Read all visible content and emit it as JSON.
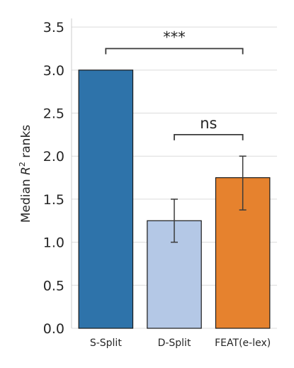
{
  "chart_data": {
    "type": "bar",
    "categories": [
      "S-Split",
      "D-Split",
      "FEAT(e-lex)"
    ],
    "values": [
      3.0,
      1.25,
      1.75
    ],
    "error_bars": [
      {
        "low": 3.0,
        "high": 3.0
      },
      {
        "low": 1.0,
        "high": 1.5
      },
      {
        "low": 1.375,
        "high": 2.0
      }
    ],
    "colors": [
      "#2e73aa",
      "#b4c8e6",
      "#e6822e"
    ],
    "ylabel_prefix": "Median ",
    "ylabel_symbol": "R",
    "ylabel_sup": "2",
    "ylabel_suffix": " ranks",
    "ylim": [
      0,
      3.6
    ],
    "yticks": [
      "0.0",
      "0.5",
      "1.0",
      "1.5",
      "2.0",
      "2.5",
      "3.0",
      "3.5"
    ],
    "ytick_values": [
      0,
      0.5,
      1.0,
      1.5,
      2.0,
      2.5,
      3.0,
      3.5
    ],
    "grid": "horizontal",
    "annotations": [
      {
        "text": "***",
        "from": 0,
        "to": 2,
        "y": 3.25
      },
      {
        "text": "ns",
        "from": 1,
        "to": 2,
        "y": 2.25
      }
    ]
  }
}
